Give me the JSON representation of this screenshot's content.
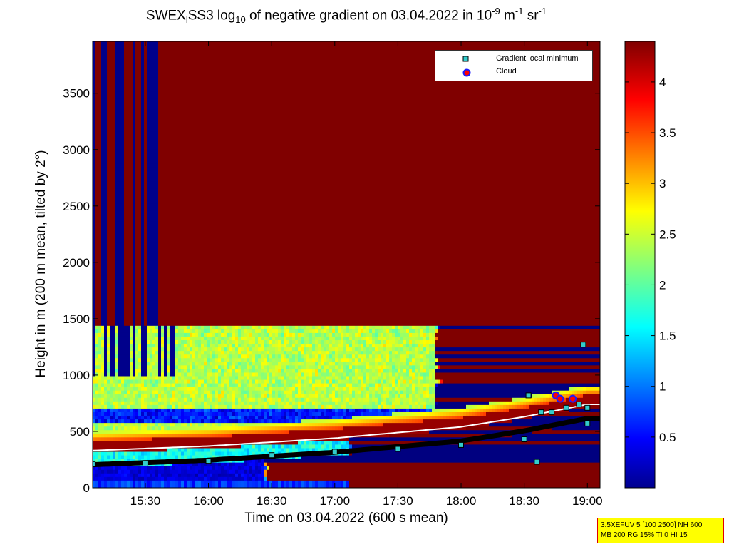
{
  "chart_data": {
    "type": "heatmap",
    "title_parts": {
      "pre": "SWEX",
      "sub1": "l",
      "mid": "SS3 log",
      "sub2": "10",
      "post": " of negative gradient on 03.04.2022 in 10",
      "sup1": "-9",
      "unit1": " m",
      "sup2": "-1",
      "unit2": " sr",
      "sup3": "-1"
    },
    "xlabel": "Time on 03.04.2022 (600 s mean)",
    "ylabel": "Height in m (200 m mean, tilted by 2°)",
    "x_range_hours": [
      15.083,
      19.1
    ],
    "x_ticks": [
      "15:30",
      "16:00",
      "16:30",
      "17:00",
      "17:30",
      "18:00",
      "18:30",
      "19:00"
    ],
    "x_tick_hours": [
      15.5,
      16.0,
      16.5,
      17.0,
      17.5,
      18.0,
      18.5,
      19.0
    ],
    "ylim": [
      0,
      3960
    ],
    "y_ticks": [
      0,
      500,
      1000,
      1500,
      2000,
      2500,
      3000,
      3500
    ],
    "colorbar": {
      "range": [
        0,
        4.4
      ],
      "ticks": [
        0.5,
        1,
        1.5,
        2,
        2.5,
        3,
        3.5,
        4
      ],
      "colormap": "jet"
    },
    "boundary_layer_top_m": [
      {
        "time": "15:05",
        "height": 350
      },
      {
        "time": "16:00",
        "height": 390
      },
      {
        "time": "17:00",
        "height": 460
      },
      {
        "time": "18:00",
        "height": 560
      },
      {
        "time": "18:30",
        "height": 650
      },
      {
        "time": "19:00",
        "height": 760
      }
    ],
    "series": [
      {
        "name": "Gradient local minimum",
        "color": "#33cccc",
        "points": [
          {
            "time": "15:05",
            "height": 210
          },
          {
            "time": "15:30",
            "height": 215
          },
          {
            "time": "16:00",
            "height": 240
          },
          {
            "time": "16:30",
            "height": 290
          },
          {
            "time": "17:00",
            "height": 320
          },
          {
            "time": "17:30",
            "height": 345
          },
          {
            "time": "18:00",
            "height": 380
          },
          {
            "time": "18:30",
            "height": 430
          },
          {
            "time": "18:32",
            "height": 820
          },
          {
            "time": "18:38",
            "height": 670
          },
          {
            "time": "18:43",
            "height": 670
          },
          {
            "time": "18:50",
            "height": 710
          },
          {
            "time": "18:56",
            "height": 740
          },
          {
            "time": "18:58",
            "height": 1270
          },
          {
            "time": "19:00",
            "height": 710
          },
          {
            "time": "19:00",
            "height": 570
          },
          {
            "time": "18:36",
            "height": 230
          }
        ]
      },
      {
        "name": "Cloud",
        "color": "#ff0000",
        "edge": "#1a1aff",
        "points": [
          {
            "time": "18:45",
            "height": 820
          },
          {
            "time": "18:47",
            "height": 790
          },
          {
            "time": "18:53",
            "height": 790
          }
        ]
      }
    ],
    "legend": {
      "position": "top-right",
      "entries": [
        "Gradient local minimum",
        "Cloud"
      ]
    },
    "grid": false
  },
  "info_box": {
    "line1": "3.5XEFUV 5 [100 2500] NH 600",
    "line2": "MB 200 RG 15% TI 0 HI 15"
  }
}
